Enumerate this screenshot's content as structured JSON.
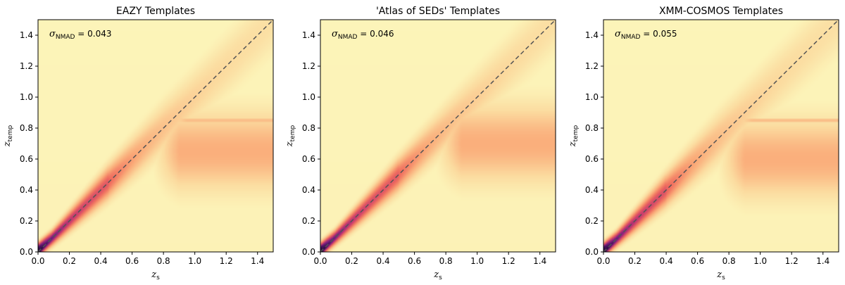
{
  "chart_data": [
    {
      "type": "heatmap",
      "title": "EAZY Templates",
      "xlabel": "z",
      "xlabel_sub": "s",
      "ylabel": "z",
      "ylabel_sub": "temp",
      "xlim": [
        0,
        1.5
      ],
      "ylim": [
        0,
        1.5
      ],
      "xticks": [
        "0.0",
        "0.2",
        "0.4",
        "0.6",
        "0.8",
        "1.0",
        "1.2",
        "1.4"
      ],
      "yticks": [
        "0.0",
        "0.2",
        "0.4",
        "0.6",
        "0.8",
        "1.0",
        "1.2",
        "1.4"
      ],
      "annotation": {
        "symbol": "σ",
        "sub": "NMAD",
        "value": " = 0.043"
      },
      "one_to_one_line": true,
      "colormap": "magma_r",
      "features": {
        "tight_end": 0.45,
        "fade_end": 0.8,
        "plateau_y": 0.65,
        "plateau_band": 0.85
      }
    },
    {
      "type": "heatmap",
      "title": "'Atlas of SEDs' Templates",
      "xlabel": "z",
      "xlabel_sub": "s",
      "ylabel": "z",
      "ylabel_sub": "temp",
      "xlim": [
        0,
        1.5
      ],
      "ylim": [
        0,
        1.5
      ],
      "xticks": [
        "0.0",
        "0.2",
        "0.4",
        "0.6",
        "0.8",
        "1.0",
        "1.2",
        "1.4"
      ],
      "yticks": [
        "0.0",
        "0.2",
        "0.4",
        "0.6",
        "0.8",
        "1.0",
        "1.2",
        "1.4"
      ],
      "annotation": {
        "symbol": "σ",
        "sub": "NMAD",
        "value": " = 0.046"
      },
      "one_to_one_line": true,
      "colormap": "magma_r",
      "features": {
        "tight_end": 0.5,
        "fade_end": 0.9,
        "plateau_y": 0.7,
        "plateau_band": 0.0
      }
    },
    {
      "type": "heatmap",
      "title": "XMM-COSMOS Templates",
      "xlabel": "z",
      "xlabel_sub": "s",
      "ylabel": "z",
      "ylabel_sub": "temp",
      "xlim": [
        0,
        1.5
      ],
      "ylim": [
        0,
        1.5
      ],
      "xticks": [
        "0.0",
        "0.2",
        "0.4",
        "0.6",
        "0.8",
        "1.0",
        "1.2",
        "1.4"
      ],
      "yticks": [
        "0.0",
        "0.2",
        "0.4",
        "0.6",
        "0.8",
        "1.0",
        "1.2",
        "1.4"
      ],
      "annotation": {
        "symbol": "σ",
        "sub": "NMAD",
        "value": " = 0.055"
      },
      "one_to_one_line": true,
      "colormap": "magma_r",
      "features": {
        "tight_end": 0.4,
        "fade_end": 0.75,
        "plateau_y": 0.6,
        "plateau_band": 0.85
      }
    }
  ]
}
